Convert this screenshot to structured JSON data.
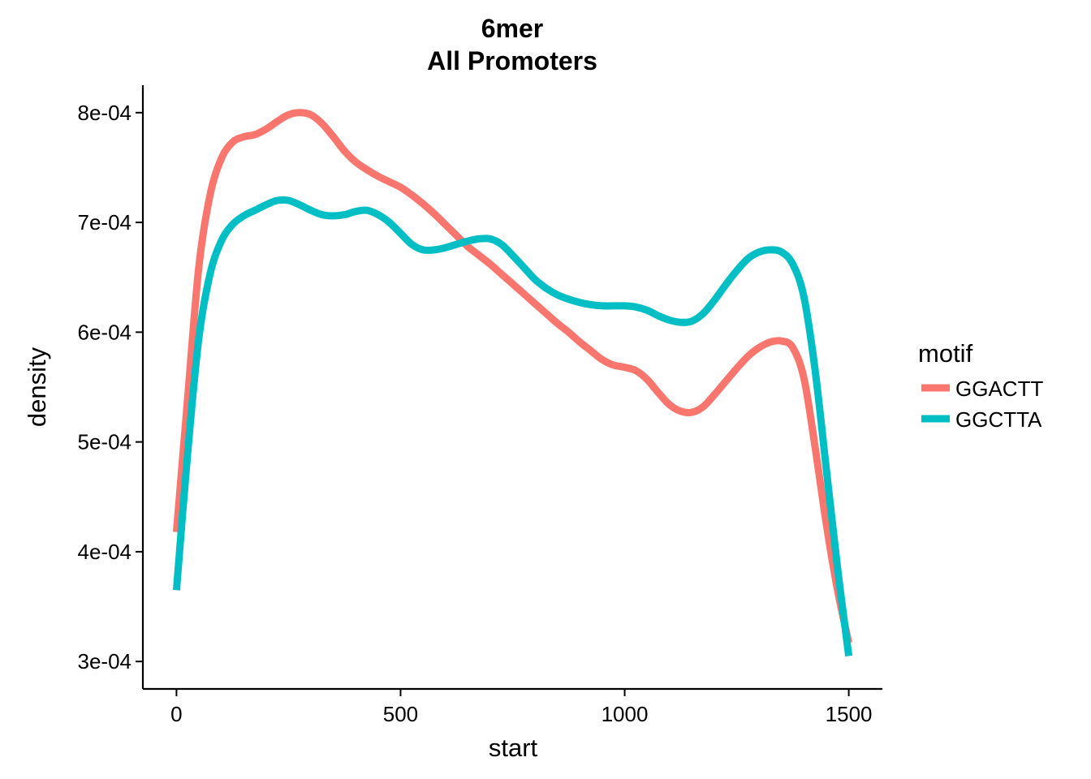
{
  "chart_data": {
    "type": "line",
    "title": [
      "6mer",
      "All Promoters"
    ],
    "xlabel": "start",
    "ylabel": "density",
    "xlim": [
      -75,
      1575
    ],
    "ylim": [
      0.000275,
      0.000825
    ],
    "xticks": [
      0,
      500,
      1000,
      1500
    ],
    "xtick_labels": [
      "0",
      "500",
      "1000",
      "1500"
    ],
    "yticks": [
      0.0003,
      0.0004,
      0.0005,
      0.0006,
      0.0007,
      0.0008
    ],
    "ytick_labels": [
      "3e-04",
      "4e-04",
      "5e-04",
      "6e-04",
      "7e-04",
      "8e-04"
    ],
    "grid": false,
    "legend": {
      "title": "motif",
      "placement": "right"
    },
    "series": [
      {
        "name": "GGACTT",
        "color": "#F8766D",
        "points": [
          [
            0,
            0.000418
          ],
          [
            25,
            0.00054
          ],
          [
            50,
            0.00066
          ],
          [
            75,
            0.000725
          ],
          [
            100,
            0.000758
          ],
          [
            125,
            0.000773
          ],
          [
            150,
            0.000778
          ],
          [
            175,
            0.00078
          ],
          [
            200,
            0.000785
          ],
          [
            225,
            0.000792
          ],
          [
            250,
            0.000798
          ],
          [
            275,
            0.0008
          ],
          [
            300,
            0.000798
          ],
          [
            325,
            0.00079
          ],
          [
            350,
            0.000778
          ],
          [
            375,
            0.000765
          ],
          [
            400,
            0.000755
          ],
          [
            425,
            0.000748
          ],
          [
            450,
            0.000742
          ],
          [
            475,
            0.000737
          ],
          [
            500,
            0.000732
          ],
          [
            525,
            0.000725
          ],
          [
            550,
            0.000717
          ],
          [
            575,
            0.000708
          ],
          [
            600,
            0.000698
          ],
          [
            625,
            0.000688
          ],
          [
            650,
            0.000678
          ],
          [
            675,
            0.00067
          ],
          [
            700,
            0.000662
          ],
          [
            725,
            0.000653
          ],
          [
            750,
            0.000644
          ],
          [
            775,
            0.000635
          ],
          [
            800,
            0.000626
          ],
          [
            825,
            0.000617
          ],
          [
            850,
            0.000608
          ],
          [
            875,
            0.0006
          ],
          [
            900,
            0.000591
          ],
          [
            925,
            0.000583
          ],
          [
            950,
            0.000575
          ],
          [
            975,
            0.00057
          ],
          [
            1000,
            0.000568
          ],
          [
            1025,
            0.000565
          ],
          [
            1050,
            0.000557
          ],
          [
            1075,
            0.000545
          ],
          [
            1100,
            0.000534
          ],
          [
            1125,
            0.000528
          ],
          [
            1150,
            0.000527
          ],
          [
            1175,
            0.000532
          ],
          [
            1200,
            0.000543
          ],
          [
            1225,
            0.000555
          ],
          [
            1250,
            0.000567
          ],
          [
            1275,
            0.000578
          ],
          [
            1300,
            0.000586
          ],
          [
            1325,
            0.000591
          ],
          [
            1350,
            0.000592
          ],
          [
            1375,
            0.000586
          ],
          [
            1400,
            0.000558
          ],
          [
            1425,
            0.000495
          ],
          [
            1450,
            0.000425
          ],
          [
            1475,
            0.000365
          ],
          [
            1500,
            0.000317
          ]
        ]
      },
      {
        "name": "GGCTTA",
        "color": "#00BFC4",
        "points": [
          [
            0,
            0.000365
          ],
          [
            25,
            0.00049
          ],
          [
            50,
            0.000595
          ],
          [
            75,
            0.000653
          ],
          [
            100,
            0.000683
          ],
          [
            125,
            0.000698
          ],
          [
            150,
            0.000706
          ],
          [
            175,
            0.000711
          ],
          [
            200,
            0.000716
          ],
          [
            225,
            0.00072
          ],
          [
            250,
            0.00072
          ],
          [
            275,
            0.000716
          ],
          [
            300,
            0.000711
          ],
          [
            325,
            0.000707
          ],
          [
            350,
            0.000706
          ],
          [
            375,
            0.000707
          ],
          [
            400,
            0.00071
          ],
          [
            425,
            0.000711
          ],
          [
            450,
            0.000707
          ],
          [
            475,
            0.0007
          ],
          [
            500,
            0.00069
          ],
          [
            525,
            0.00068
          ],
          [
            550,
            0.000675
          ],
          [
            575,
            0.000675
          ],
          [
            600,
            0.000677
          ],
          [
            625,
            0.00068
          ],
          [
            650,
            0.000683
          ],
          [
            675,
            0.000685
          ],
          [
            700,
            0.000685
          ],
          [
            725,
            0.00068
          ],
          [
            750,
            0.00067
          ],
          [
            775,
            0.000659
          ],
          [
            800,
            0.000648
          ],
          [
            825,
            0.00064
          ],
          [
            850,
            0.000634
          ],
          [
            875,
            0.00063
          ],
          [
            900,
            0.000627
          ],
          [
            925,
            0.000625
          ],
          [
            950,
            0.000624
          ],
          [
            975,
            0.000624
          ],
          [
            1000,
            0.000624
          ],
          [
            1025,
            0.000623
          ],
          [
            1050,
            0.00062
          ],
          [
            1075,
            0.000615
          ],
          [
            1100,
            0.000611
          ],
          [
            1125,
            0.000609
          ],
          [
            1150,
            0.00061
          ],
          [
            1175,
            0.000617
          ],
          [
            1200,
            0.000629
          ],
          [
            1225,
            0.000643
          ],
          [
            1250,
            0.000656
          ],
          [
            1275,
            0.000667
          ],
          [
            1300,
            0.000673
          ],
          [
            1325,
            0.000675
          ],
          [
            1350,
            0.000673
          ],
          [
            1375,
            0.000662
          ],
          [
            1400,
            0.000632
          ],
          [
            1425,
            0.000565
          ],
          [
            1450,
            0.000475
          ],
          [
            1475,
            0.000385
          ],
          [
            1500,
            0.000305
          ]
        ]
      }
    ]
  }
}
